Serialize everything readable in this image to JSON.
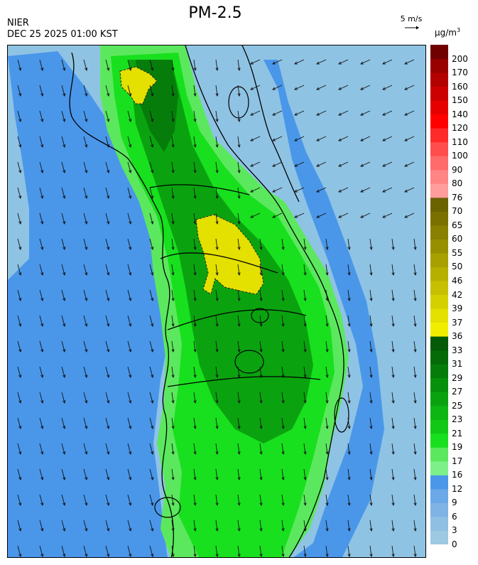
{
  "header": {
    "title": "PM-2.5",
    "agency": "NIER",
    "datetime": "DEC 25 2025 01:00 KST",
    "wind_reference": "5 m/s",
    "unit_base": "µg/m",
    "unit_exp": "3"
  },
  "legend": {
    "bands": [
      {
        "label": "0",
        "color": "#9ec9e2"
      },
      {
        "label": "3",
        "color": "#8fbfe3"
      },
      {
        "label": "6",
        "color": "#7fb3e6"
      },
      {
        "label": "9",
        "color": "#6aa8e8"
      },
      {
        "label": "12",
        "color": "#4a97ea"
      },
      {
        "label": "16",
        "color": "#7ef08a"
      },
      {
        "label": "17",
        "color": "#5ce85e"
      },
      {
        "label": "19",
        "color": "#18e01e"
      },
      {
        "label": "21",
        "color": "#12c817"
      },
      {
        "label": "23",
        "color": "#0eb613"
      },
      {
        "label": "25",
        "color": "#0aa30f"
      },
      {
        "label": "27",
        "color": "#07900b"
      },
      {
        "label": "29",
        "color": "#067d0a"
      },
      {
        "label": "31",
        "color": "#056b08"
      },
      {
        "label": "33",
        "color": "#045a06"
      },
      {
        "label": "36",
        "color": "#f2ee00"
      },
      {
        "label": "37",
        "color": "#e4e000"
      },
      {
        "label": "39",
        "color": "#d4d000"
      },
      {
        "label": "42",
        "color": "#c6c000"
      },
      {
        "label": "46",
        "color": "#b6b000"
      },
      {
        "label": "50",
        "color": "#a7a000"
      },
      {
        "label": "55",
        "color": "#988f00"
      },
      {
        "label": "60",
        "color": "#897f00"
      },
      {
        "label": "65",
        "color": "#7a7000"
      },
      {
        "label": "70",
        "color": "#6b6200"
      },
      {
        "label": "76",
        "color": "#ff9c9c"
      },
      {
        "label": "80",
        "color": "#ff8585"
      },
      {
        "label": "90",
        "color": "#ff6a6a"
      },
      {
        "label": "100",
        "color": "#ff4d4d"
      },
      {
        "label": "110",
        "color": "#ff2a2a"
      },
      {
        "label": "120",
        "color": "#ff0000"
      },
      {
        "label": "140",
        "color": "#e60000"
      },
      {
        "label": "150",
        "color": "#cc0000"
      },
      {
        "label": "160",
        "color": "#b30000"
      },
      {
        "label": "170",
        "color": "#990000"
      },
      {
        "label": "200",
        "color": "#700000"
      }
    ]
  },
  "map": {
    "sea_colors": {
      "deep": "#8fc3e4",
      "shelf": "#4a97ea"
    },
    "land_colors": {
      "light": "#5ce85e",
      "mid": "#18e01e",
      "dark": "#0aa30f",
      "darker": "#067d0a",
      "hot": "#e4e000"
    }
  }
}
